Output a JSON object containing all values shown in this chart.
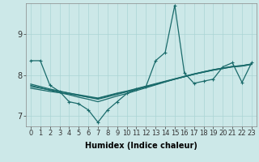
{
  "xlabel": "Humidex (Indice chaleur)",
  "bg_color": "#cce8e8",
  "line_color": "#1a6b6b",
  "grid_color": "#aad4d4",
  "xlim": [
    -0.5,
    23.5
  ],
  "ylim": [
    6.75,
    9.75
  ],
  "yticks": [
    7,
    8,
    9
  ],
  "xticks": [
    0,
    1,
    2,
    3,
    4,
    5,
    6,
    7,
    8,
    9,
    10,
    11,
    12,
    13,
    14,
    15,
    16,
    17,
    18,
    19,
    20,
    21,
    22,
    23
  ],
  "series": [
    {
      "y": [
        8.35,
        8.35,
        7.75,
        7.6,
        7.35,
        7.3,
        7.15,
        6.85,
        7.15,
        7.35,
        7.55,
        7.65,
        7.72,
        8.35,
        8.55,
        9.7,
        8.05,
        7.8,
        7.85,
        7.9,
        8.2,
        8.3,
        7.82,
        8.3
      ],
      "marker": true,
      "lw": 0.9
    },
    {
      "y": [
        7.78,
        7.72,
        7.66,
        7.61,
        7.56,
        7.51,
        7.46,
        7.41,
        7.47,
        7.53,
        7.59,
        7.65,
        7.71,
        7.77,
        7.84,
        7.9,
        7.96,
        8.02,
        8.08,
        8.13,
        8.17,
        8.21,
        8.23,
        8.27
      ],
      "marker": false,
      "lw": 0.9
    },
    {
      "y": [
        7.72,
        7.68,
        7.64,
        7.6,
        7.56,
        7.52,
        7.48,
        7.44,
        7.5,
        7.56,
        7.61,
        7.67,
        7.73,
        7.79,
        7.85,
        7.91,
        7.97,
        8.03,
        8.08,
        8.13,
        8.17,
        8.21,
        8.23,
        8.27
      ],
      "marker": false,
      "lw": 0.9
    },
    {
      "y": [
        7.68,
        7.64,
        7.6,
        7.57,
        7.54,
        7.5,
        7.46,
        7.43,
        7.49,
        7.55,
        7.6,
        7.66,
        7.72,
        7.78,
        7.84,
        7.9,
        7.96,
        8.02,
        8.07,
        8.12,
        8.16,
        8.2,
        8.22,
        8.26
      ],
      "marker": false,
      "lw": 0.9
    },
    {
      "y": [
        7.75,
        7.69,
        7.63,
        7.57,
        7.52,
        7.46,
        7.41,
        7.35,
        7.42,
        7.49,
        7.55,
        7.62,
        7.69,
        7.76,
        7.83,
        7.9,
        7.96,
        8.02,
        8.07,
        8.12,
        8.16,
        8.2,
        8.22,
        8.26
      ],
      "marker": false,
      "lw": 0.9
    }
  ],
  "xlabel_fontsize": 7,
  "tick_fontsize": 6,
  "ytick_fontsize": 7
}
